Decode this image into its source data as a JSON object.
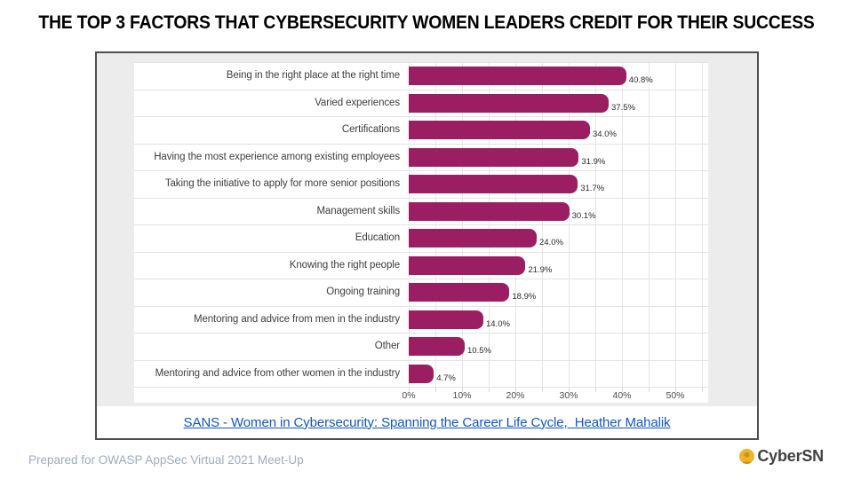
{
  "title": "THE TOP 3 FACTORS THAT CYBERSECURITY WOMEN LEADERS CREDIT FOR THEIR SUCCESS",
  "chart_data": {
    "type": "bar",
    "orientation": "horizontal",
    "title": "",
    "categories": [
      "Being in the right place at the right time",
      "Varied experiences",
      "Certifications",
      "Having the most experience among existing employees",
      "Taking the initiative to apply for more senior positions",
      "Management skills",
      "Education",
      "Knowing the right people",
      "Ongoing training",
      "Mentoring and advice from men in the industry",
      "Other",
      "Mentoring and advice from other women in the industry"
    ],
    "values": [
      40.8,
      37.5,
      34.0,
      31.9,
      31.7,
      30.1,
      24.0,
      21.9,
      18.9,
      14.0,
      10.5,
      4.7
    ],
    "value_suffix": "%",
    "x_ticks": [
      "0%",
      "10%",
      "20%",
      "30%",
      "40%",
      "50%"
    ],
    "x_tick_values": [
      0,
      10,
      20,
      30,
      40,
      50
    ],
    "xlim": [
      0,
      56
    ],
    "grid": true,
    "grid_step": 5,
    "legend_position": "none",
    "bar_color": "#9B1E62"
  },
  "source_link": "SANS - Women in Cybersecurity: Spanning the Career Life Cycle,  Heather Mahalik",
  "footer": {
    "note": "Prepared for OWASP AppSec Virtual 2021 Meet-Up",
    "logo_text": "CyberSN"
  },
  "colors": {
    "bar": "#9B1E62",
    "link": "#1155CC",
    "panel_border": "#4F4F4F",
    "chart_background": "#ECECEC",
    "footer_text": "#9DACBE",
    "logo_yellow": "#F0B32A",
    "logo_person": "#C6951F"
  }
}
